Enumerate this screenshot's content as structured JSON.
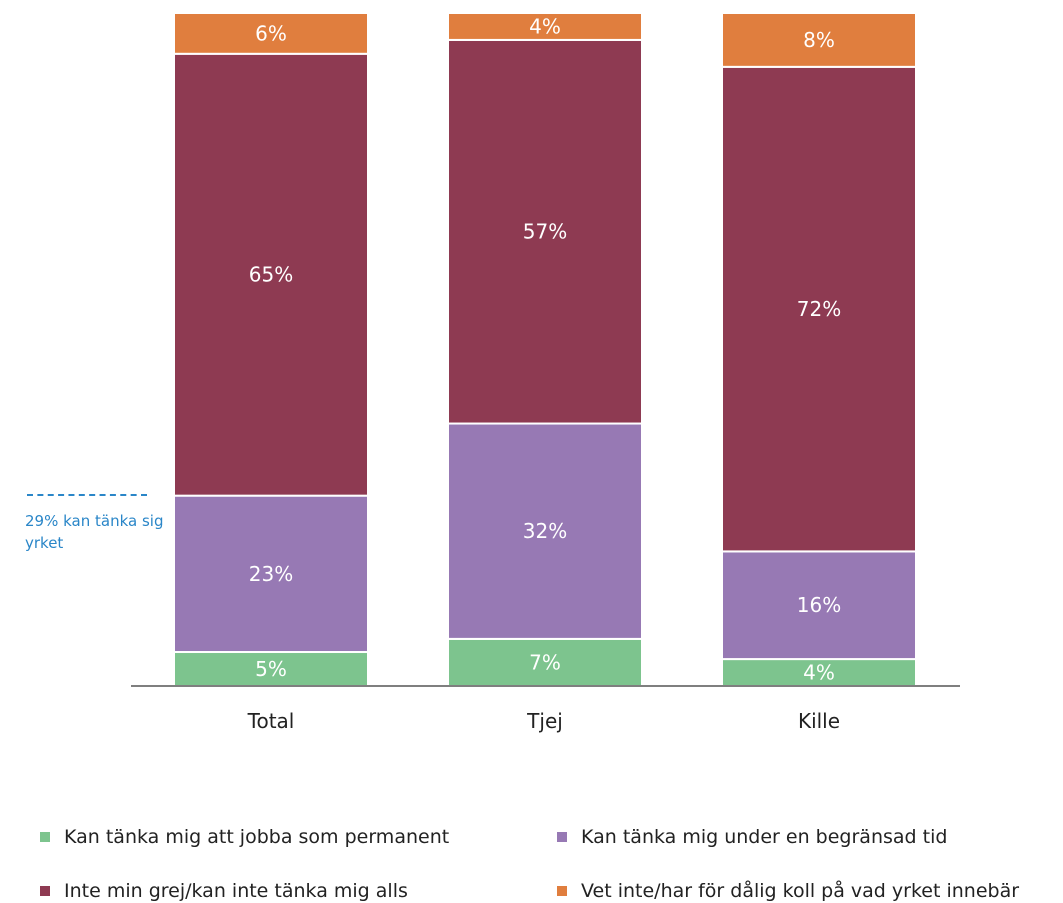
{
  "chart_data": {
    "type": "bar",
    "stacked": true,
    "categories": [
      "Total",
      "Tjej",
      "Kille"
    ],
    "series": [
      {
        "name": "Kan tänka mig att jobba som permanent",
        "values": [
          5,
          7,
          4
        ],
        "labels": [
          "5%",
          "7%",
          "4%"
        ],
        "color": "#7dc48e"
      },
      {
        "name": "Kan tänka mig under en begränsad tid",
        "values": [
          23,
          32,
          16
        ],
        "labels": [
          "23%",
          "32%",
          "16%"
        ],
        "color": "#9779b4"
      },
      {
        "name": "Inte min grej/kan inte tänka mig alls",
        "values": [
          65,
          57,
          72
        ],
        "labels": [
          "65%",
          "57%",
          "72%"
        ],
        "color": "#8e3a52"
      },
      {
        "name": "Vet inte/har för dålig koll på vad yrket innebär",
        "values": [
          6,
          4,
          8
        ],
        "labels": [
          "6%",
          "4%",
          "8%"
        ],
        "color": "#e07e3e"
      }
    ],
    "ylim": [
      0,
      100
    ],
    "grid": false,
    "legend_position": "bottom",
    "annotation": "29% kan tänka sig yrket"
  },
  "legend": {
    "items": [
      {
        "label": "Kan tänka mig att jobba som permanent",
        "color": "#7dc48e"
      },
      {
        "label": "Kan tänka mig under en begränsad tid",
        "color": "#9779b4"
      },
      {
        "label": "Inte min grej/kan inte tänka mig alls",
        "color": "#8e3a52"
      },
      {
        "label": "Vet inte/har för dålig koll på vad yrket innebär",
        "color": "#e07e3e"
      }
    ]
  }
}
